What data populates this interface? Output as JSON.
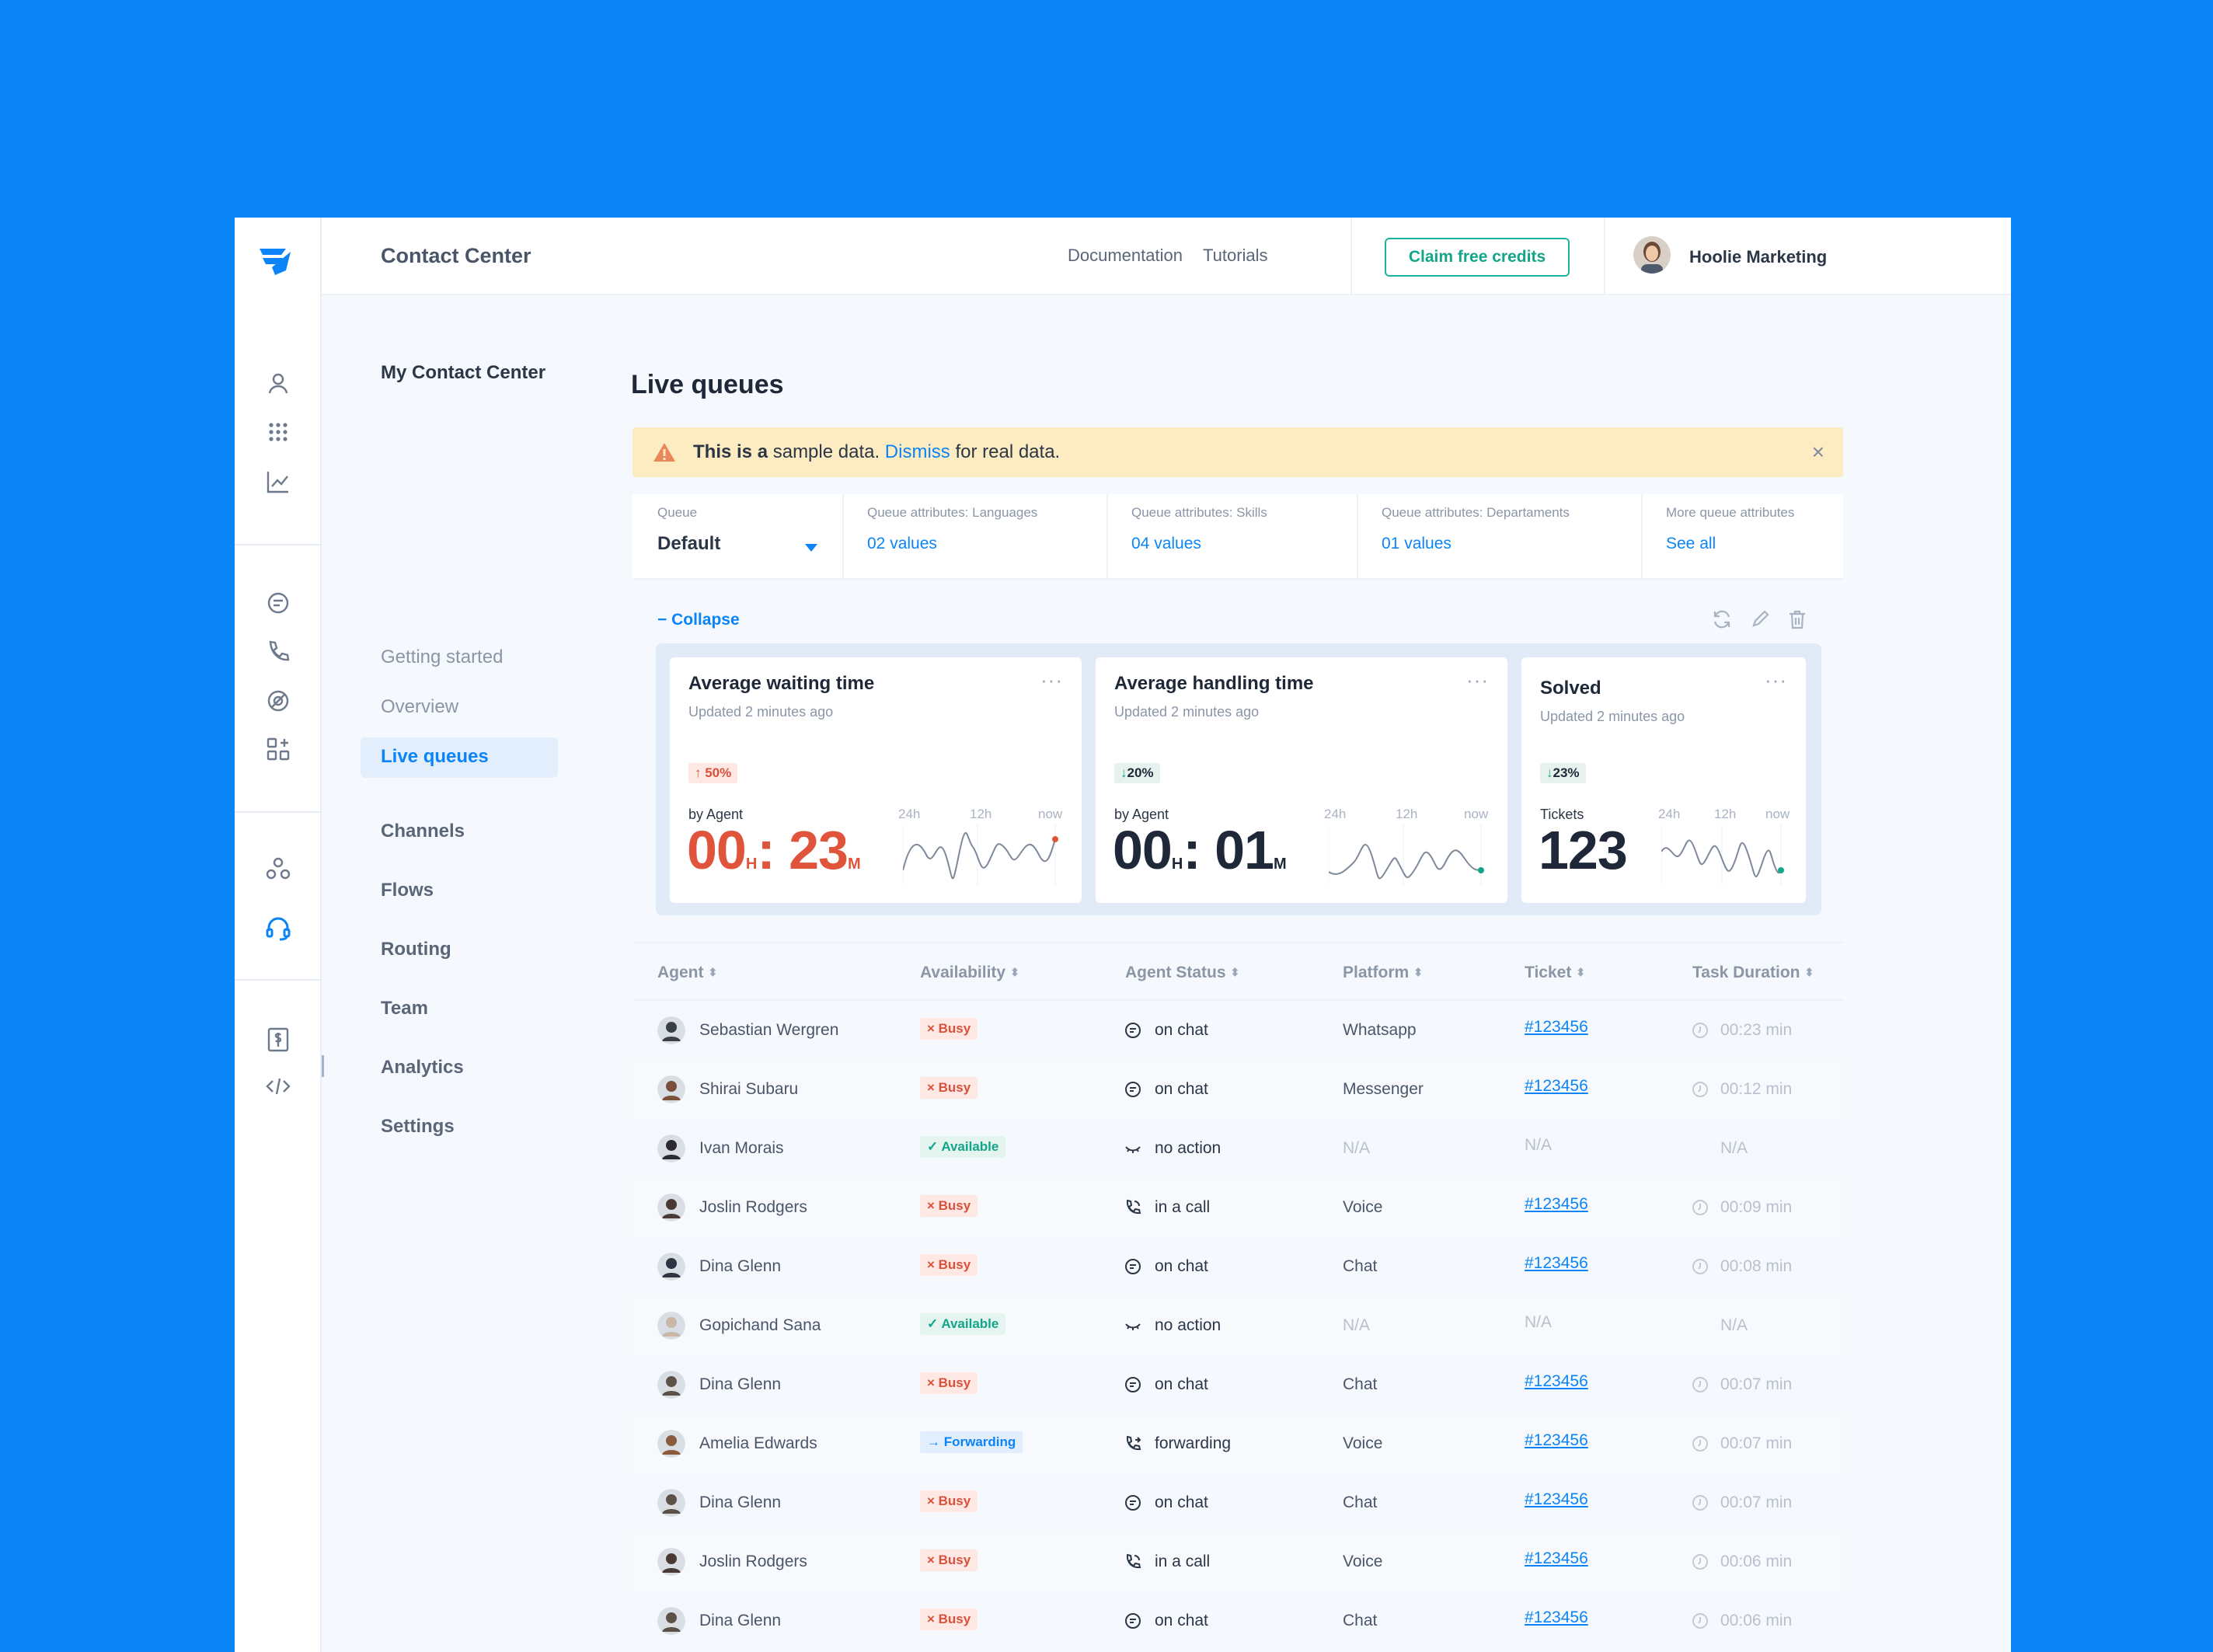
{
  "app": {
    "title": "Contact Center",
    "nav": {
      "documentation": "Documentation",
      "tutorials": "Tutorials"
    },
    "claim_label": "Claim free credits",
    "user_name": "Hoolie Marketing"
  },
  "subnav": {
    "heading": "My Contact Center",
    "getting_started": "Getting started",
    "overview": "Overview",
    "live_queues": "Live queues",
    "channels": "Channels",
    "flows": "Flows",
    "routing": "Routing",
    "team": "Team",
    "analytics": "Analytics",
    "settings": "Settings"
  },
  "page": {
    "title": "Live queues",
    "alert": {
      "bold": "This is a",
      "text1": " sample data. ",
      "link": "Dismiss",
      "text2": " for real data.",
      "close": "×"
    },
    "filters": [
      {
        "label": "Queue",
        "value": "Default"
      },
      {
        "label": "Queue attributes: Languages",
        "value": "02 values"
      },
      {
        "label": "Queue  attributes: Skills",
        "value": "04 values"
      },
      {
        "label": "Queue  attributes: Departaments",
        "value": "01 values"
      },
      {
        "label": "More queue attributes",
        "value": "See all"
      }
    ],
    "collapse": "− Collapse",
    "cards": [
      {
        "title": "Average waiting time",
        "updated": "Updated  2 minutes ago",
        "badge": "↑ 50%",
        "sub": "by Agent",
        "h": "00",
        "hu": "H",
        "m": "23",
        "mu": "M",
        "ticks": [
          "24h",
          "12h",
          "now"
        ]
      },
      {
        "title": "Average handling time",
        "updated": "Updated  2 minutes ago",
        "badge": "20%",
        "sub": "by Agent",
        "h": "00",
        "hu": "H",
        "m": "01",
        "mu": "M",
        "ticks": [
          "24h",
          "12h",
          "now"
        ]
      },
      {
        "title": "Solved",
        "updated": "Updated  2 minutes ago",
        "badge": "23%",
        "sub": "Tickets",
        "value": "123",
        "ticks": [
          "24h",
          "12h",
          "now"
        ]
      }
    ],
    "card_more": "···",
    "badge_down_arrow": "↓",
    "time_sep": ":",
    "table": {
      "headers": [
        "Agent",
        "Availability",
        "Agent Status",
        "Platform",
        "Ticket",
        "Task Duration"
      ],
      "sort_glyph": "⬍",
      "rows": [
        {
          "agent": "Sebastian Wergren",
          "availability": "× Busy",
          "status": "on chat",
          "platform": "Whatsapp",
          "ticket": "#123456",
          "duration": "00:23 min"
        },
        {
          "agent": "Shirai Subaru",
          "availability": "× Busy",
          "status": "on chat",
          "platform": "Messenger",
          "ticket": "#123456",
          "duration": "00:12 min"
        },
        {
          "agent": "Ivan Morais",
          "availability": "✓ Available",
          "status": "no action",
          "platform": "N/A",
          "ticket": "N/A",
          "duration": "N/A"
        },
        {
          "agent": "Joslin Rodgers",
          "availability": "× Busy",
          "status": "in a call",
          "platform": "Voice",
          "ticket": "#123456",
          "duration": "00:09 min"
        },
        {
          "agent": "Dina Glenn",
          "availability": "× Busy",
          "status": "on chat",
          "platform": "Chat",
          "ticket": "#123456",
          "duration": "00:08 min"
        },
        {
          "agent": "Gopichand Sana",
          "availability": "✓ Available",
          "status": "no action",
          "platform": "N/A",
          "ticket": "N/A",
          "duration": "N/A"
        },
        {
          "agent": "Dina Glenn",
          "availability": "× Busy",
          "status": "on chat",
          "platform": "Chat",
          "ticket": "#123456",
          "duration": "00:07 min"
        },
        {
          "agent": "Amelia Edwards",
          "availability": "→ Forwarding",
          "status": "forwarding",
          "platform": "Voice",
          "ticket": "#123456",
          "duration": "00:07 min"
        },
        {
          "agent": "Dina Glenn",
          "availability": "× Busy",
          "status": "on chat",
          "platform": "Chat",
          "ticket": "#123456",
          "duration": "00:07 min"
        },
        {
          "agent": "Joslin Rodgers",
          "availability": "× Busy",
          "status": "in a call",
          "platform": "Voice",
          "ticket": "#123456",
          "duration": "00:06 min"
        },
        {
          "agent": "Dina Glenn",
          "availability": "× Busy",
          "status": "on chat",
          "platform": "Chat",
          "ticket": "#123456",
          "duration": "00:06 min"
        }
      ]
    }
  },
  "icons": {
    "rail": [
      "logo-icon",
      "user-icon",
      "dialpad-icon",
      "analytics-icon",
      "chat-icon",
      "phone-icon",
      "mention-icon",
      "apps-icon",
      "team-icon",
      "headset-icon",
      "billing-icon",
      "code-icon"
    ],
    "status": {
      "on chat": "chat-bubble-icon",
      "no action": "closed-eye-icon",
      "in a call": "phone-call-icon",
      "forwarding": "phone-forward-icon"
    }
  },
  "colors": {
    "background": "#0B84F7",
    "accent": "#0B84F7",
    "claim": "#13A589",
    "busy": "#D9503B",
    "available": "#13A589",
    "alert": "#FDEBC2"
  }
}
